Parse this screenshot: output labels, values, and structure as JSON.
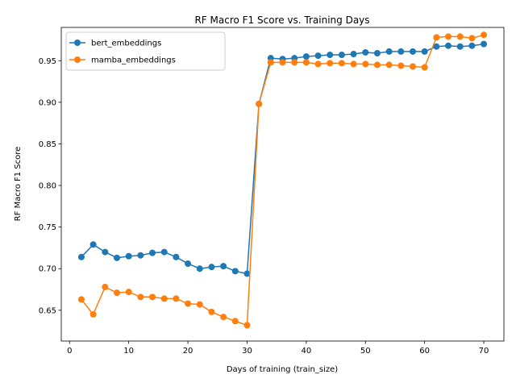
{
  "chart_data": {
    "type": "line",
    "title": "RF Macro F1 Score vs. Training Days",
    "xlabel": "Days of training (train_size)",
    "ylabel": "RF Macro F1 Score",
    "xlim": [
      -1.4,
      73.4
    ],
    "ylim": [
      0.613,
      0.99
    ],
    "xticks": [
      0,
      10,
      20,
      30,
      40,
      50,
      60,
      70
    ],
    "yticks": [
      0.65,
      0.7,
      0.75,
      0.8,
      0.85,
      0.9,
      0.95
    ],
    "ytick_labels": [
      "0.65",
      "0.70",
      "0.75",
      "0.80",
      "0.85",
      "0.90",
      "0.95"
    ],
    "legend_position": "upper left",
    "grid": false,
    "x": [
      2,
      4,
      6,
      8,
      10,
      12,
      14,
      16,
      18,
      20,
      22,
      24,
      26,
      28,
      30,
      32,
      34,
      36,
      38,
      40,
      42,
      44,
      46,
      48,
      50,
      52,
      54,
      56,
      58,
      60,
      62,
      64,
      66,
      68,
      70
    ],
    "series": [
      {
        "name": "bert_embeddings",
        "color": "#1f77b4",
        "values": [
          0.714,
          0.729,
          0.72,
          0.713,
          0.715,
          0.716,
          0.719,
          0.72,
          0.714,
          0.706,
          0.7,
          0.702,
          0.703,
          0.697,
          0.694,
          0.898,
          0.953,
          0.952,
          0.953,
          0.955,
          0.956,
          0.957,
          0.957,
          0.958,
          0.96,
          0.959,
          0.961,
          0.961,
          0.961,
          0.961,
          0.967,
          0.968,
          0.967,
          0.968,
          0.97
        ]
      },
      {
        "name": "mamba_embeddings",
        "color": "#ff7f0e",
        "values": [
          0.663,
          0.645,
          0.678,
          0.671,
          0.672,
          0.666,
          0.666,
          0.664,
          0.664,
          0.658,
          0.657,
          0.648,
          0.642,
          0.637,
          0.632,
          0.898,
          0.948,
          0.948,
          0.948,
          0.948,
          0.946,
          0.947,
          0.947,
          0.946,
          0.946,
          0.945,
          0.945,
          0.944,
          0.943,
          0.942,
          0.978,
          0.979,
          0.979,
          0.977,
          0.981
        ]
      }
    ]
  }
}
